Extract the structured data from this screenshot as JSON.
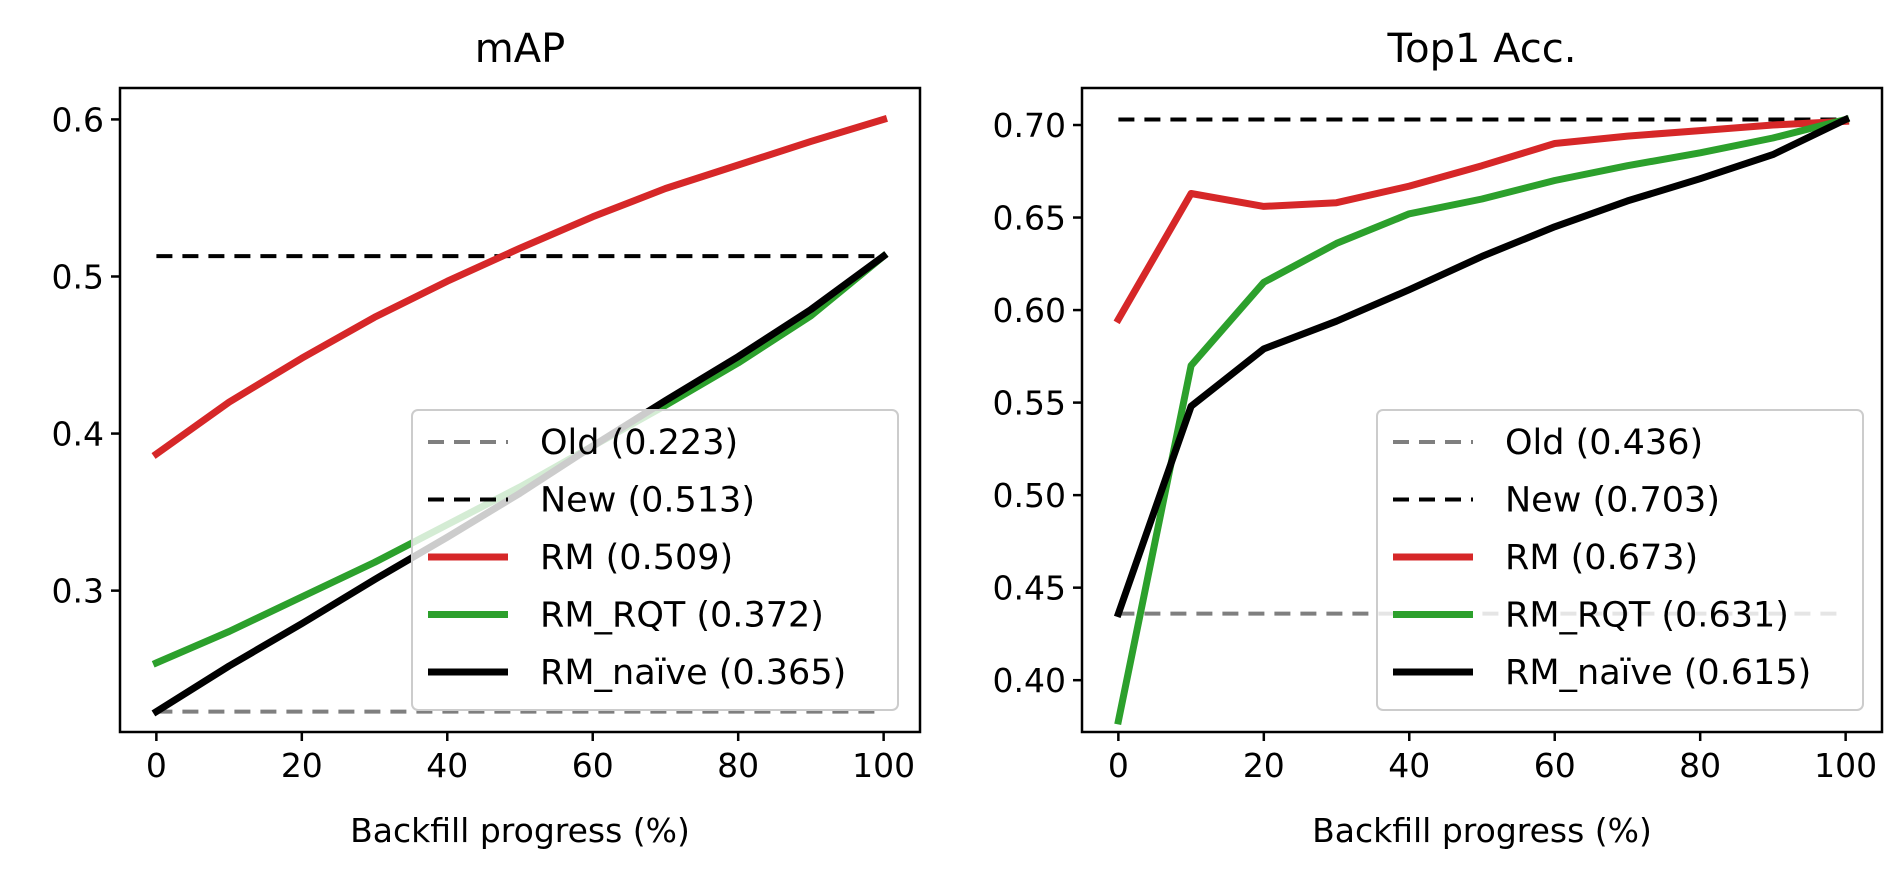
{
  "chart_data": [
    {
      "type": "line",
      "title": "mAP",
      "xlabel": "Backfill progress (%)",
      "ylabel": "",
      "xlim": [
        -5,
        105
      ],
      "ylim": [
        0.21,
        0.62
      ],
      "xticks": [
        0,
        20,
        40,
        60,
        80,
        100
      ],
      "xtick_labels": [
        "0",
        "20",
        "40",
        "60",
        "80",
        "100"
      ],
      "yticks": [
        0.3,
        0.4,
        0.5,
        0.6
      ],
      "ytick_labels": [
        "0.3",
        "0.4",
        "0.5",
        "0.6"
      ],
      "grid": false,
      "legend_position": "lower-right",
      "series": [
        {
          "name": "Old (0.223)",
          "style": "dashed",
          "color": "#7f7f7f",
          "x": [
            0,
            100
          ],
          "y": [
            0.223,
            0.223
          ]
        },
        {
          "name": "New (0.513)",
          "style": "dashed",
          "color": "#000000",
          "x": [
            0,
            100
          ],
          "y": [
            0.513,
            0.513
          ]
        },
        {
          "name": "RM (0.509)",
          "style": "solid",
          "color": "#d62728",
          "x": [
            0,
            10,
            20,
            30,
            40,
            50,
            60,
            70,
            80,
            90,
            100
          ],
          "y": [
            0.387,
            0.42,
            0.448,
            0.474,
            0.497,
            0.518,
            0.538,
            0.556,
            0.571,
            0.586,
            0.6
          ]
        },
        {
          "name": "RM_RQT (0.372)",
          "style": "solid",
          "color": "#2ca02c",
          "x": [
            0,
            10,
            20,
            30,
            40,
            50,
            60,
            70,
            80,
            90,
            100
          ],
          "y": [
            0.254,
            0.274,
            0.296,
            0.318,
            0.342,
            0.366,
            0.392,
            0.418,
            0.445,
            0.475,
            0.513
          ]
        },
        {
          "name": "RM_naïve (0.365)",
          "style": "solid",
          "color": "#000000",
          "x": [
            0,
            10,
            20,
            30,
            40,
            50,
            60,
            70,
            80,
            90,
            100
          ],
          "y": [
            0.223,
            0.252,
            0.279,
            0.307,
            0.334,
            0.362,
            0.392,
            0.421,
            0.449,
            0.479,
            0.513
          ]
        }
      ]
    },
    {
      "type": "line",
      "title": "Top1 Acc.",
      "xlabel": "Backfill progress (%)",
      "ylabel": "",
      "xlim": [
        -5,
        105
      ],
      "ylim": [
        0.372,
        0.72
      ],
      "xticks": [
        0,
        20,
        40,
        60,
        80,
        100
      ],
      "xtick_labels": [
        "0",
        "20",
        "40",
        "60",
        "80",
        "100"
      ],
      "yticks": [
        0.4,
        0.45,
        0.5,
        0.55,
        0.6,
        0.65,
        0.7
      ],
      "ytick_labels": [
        "0.40",
        "0.45",
        "0.50",
        "0.55",
        "0.60",
        "0.65",
        "0.70"
      ],
      "grid": false,
      "legend_position": "lower-right",
      "series": [
        {
          "name": "Old (0.436)",
          "style": "dashed",
          "color": "#7f7f7f",
          "x": [
            0,
            100
          ],
          "y": [
            0.436,
            0.436
          ]
        },
        {
          "name": "New (0.703)",
          "style": "dashed",
          "color": "#000000",
          "x": [
            0,
            100
          ],
          "y": [
            0.703,
            0.703
          ]
        },
        {
          "name": "RM (0.673)",
          "style": "solid",
          "color": "#d62728",
          "x": [
            0,
            10,
            20,
            30,
            40,
            50,
            60,
            70,
            80,
            90,
            100
          ],
          "y": [
            0.595,
            0.663,
            0.656,
            0.658,
            0.667,
            0.678,
            0.69,
            0.694,
            0.697,
            0.7,
            0.702
          ]
        },
        {
          "name": "RM_RQT (0.631)",
          "style": "solid",
          "color": "#2ca02c",
          "x": [
            0,
            10,
            20,
            30,
            40,
            50,
            60,
            70,
            80,
            90,
            100
          ],
          "y": [
            0.378,
            0.57,
            0.615,
            0.636,
            0.652,
            0.66,
            0.67,
            0.678,
            0.685,
            0.693,
            0.703
          ]
        },
        {
          "name": "RM_naïve (0.615)",
          "style": "solid",
          "color": "#000000",
          "x": [
            0,
            10,
            20,
            30,
            40,
            50,
            60,
            70,
            80,
            90,
            100
          ],
          "y": [
            0.436,
            0.548,
            0.579,
            0.594,
            0.611,
            0.629,
            0.645,
            0.659,
            0.671,
            0.684,
            0.703
          ]
        }
      ]
    }
  ]
}
